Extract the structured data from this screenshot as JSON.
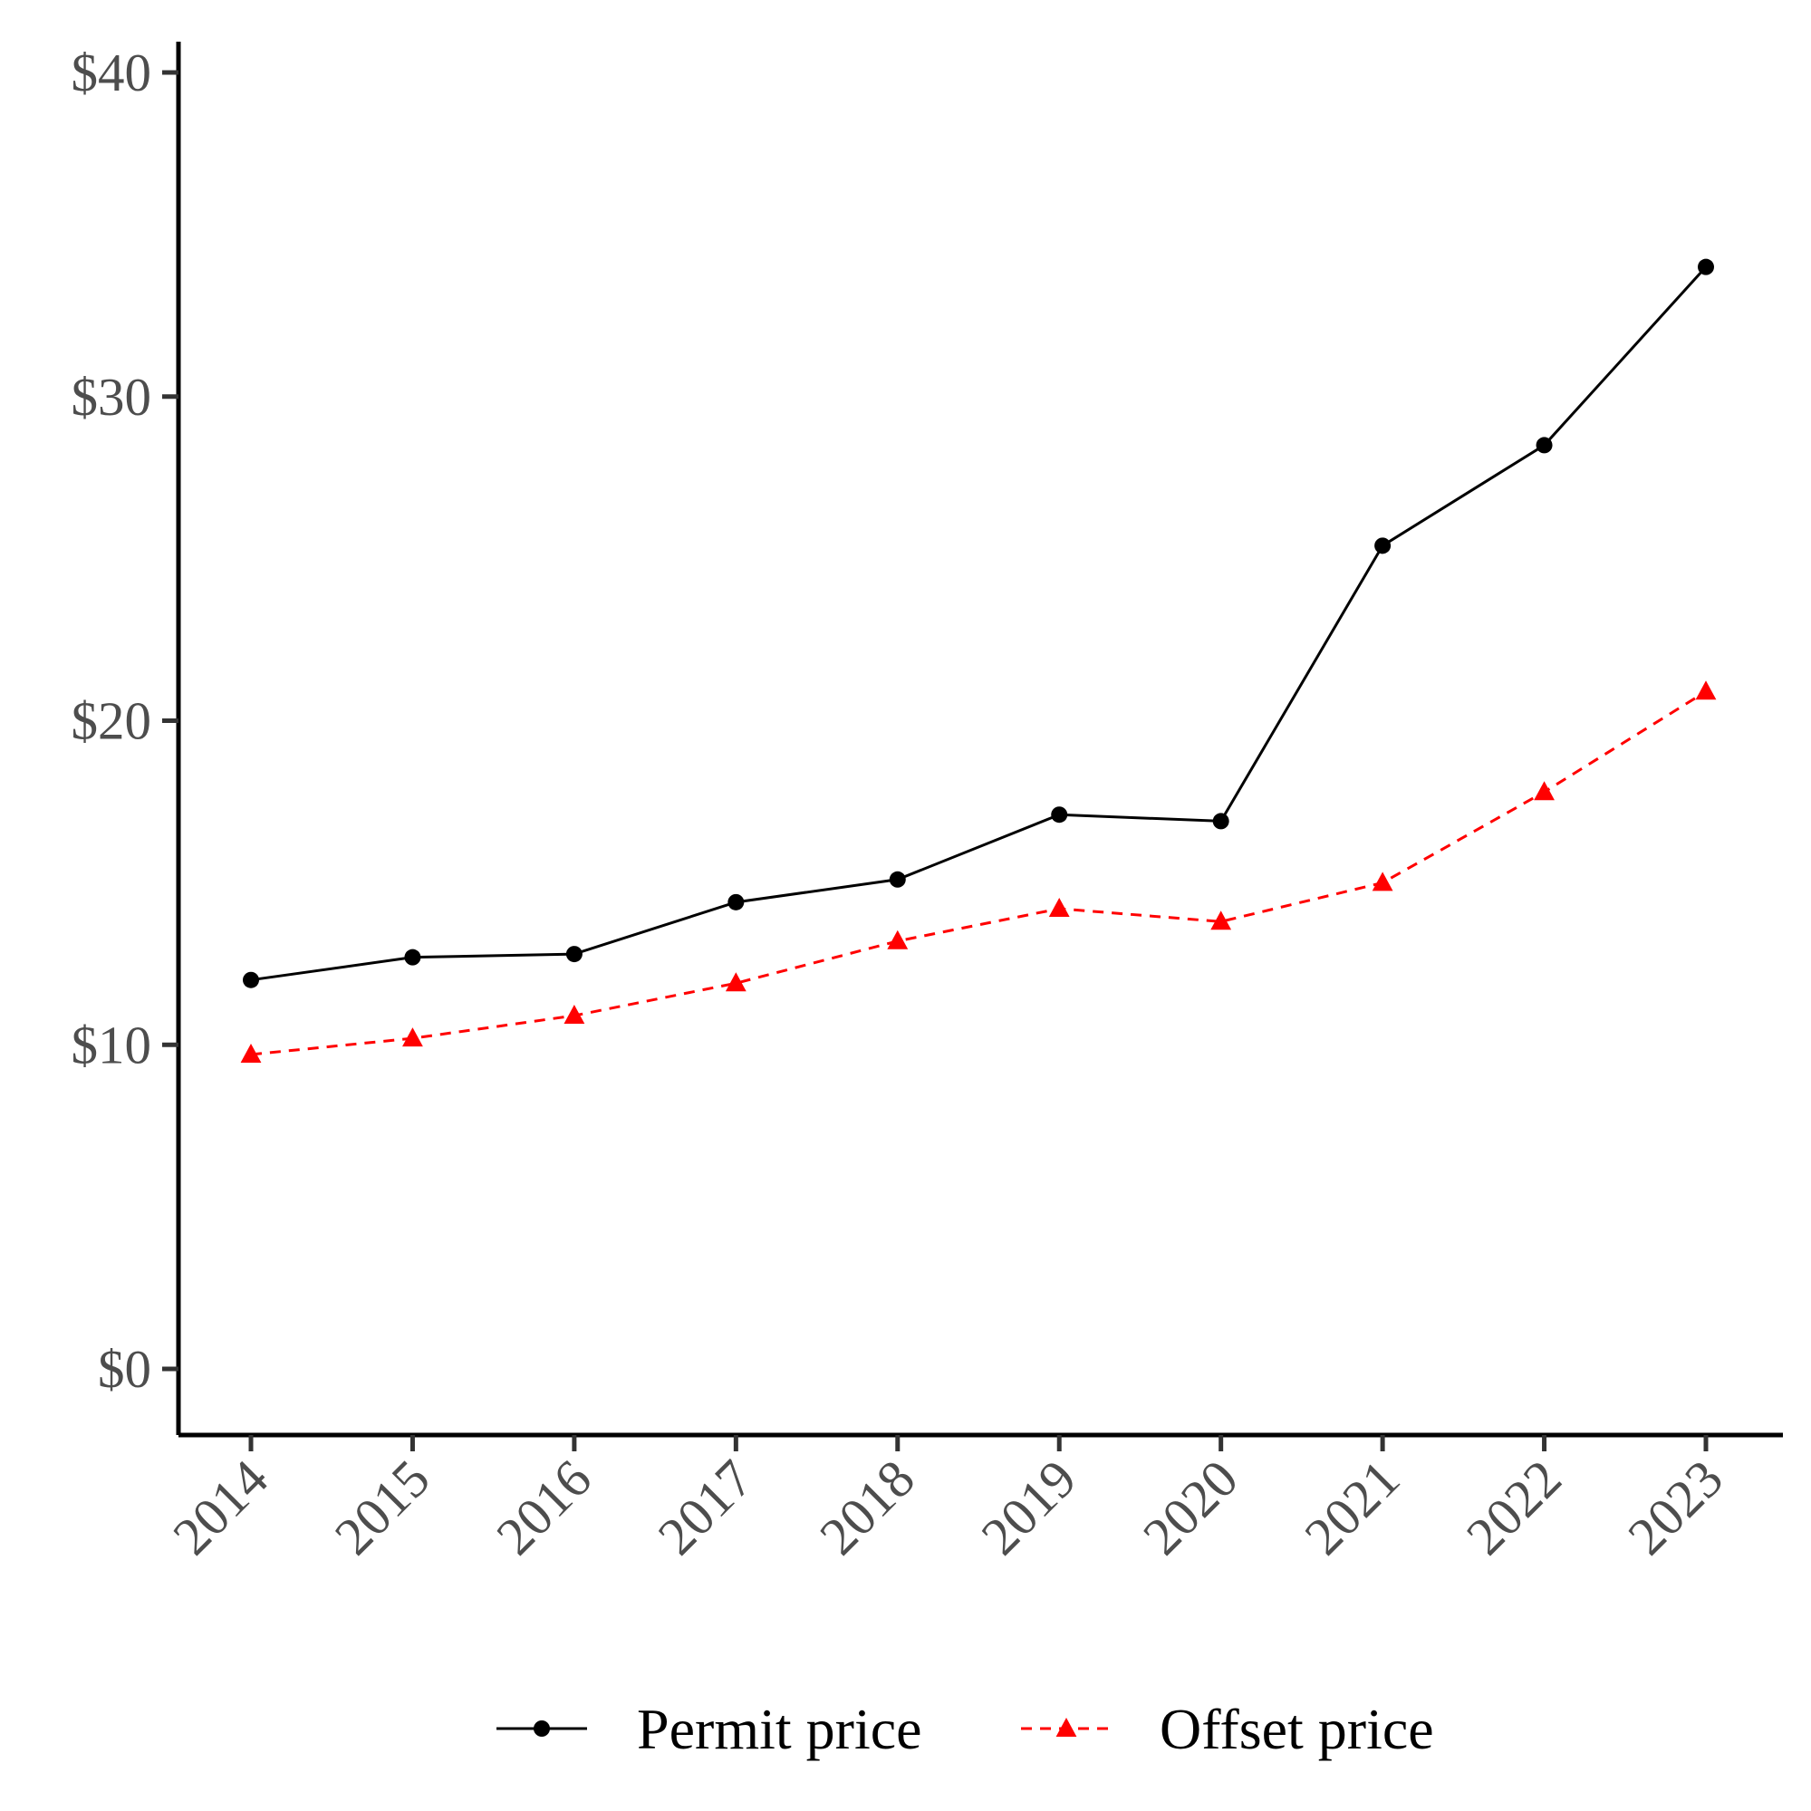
{
  "chart_data": {
    "type": "line",
    "title": "",
    "xlabel": "",
    "ylabel": "",
    "x": [
      "2014",
      "2015",
      "2016",
      "2017",
      "2018",
      "2019",
      "2020",
      "2021",
      "2022",
      "2023"
    ],
    "ylim": [
      -2,
      41
    ],
    "yticks": [
      0,
      10,
      20,
      30,
      40
    ],
    "ytick_labels": [
      "$0",
      "$10",
      "$20",
      "$30",
      "$40"
    ],
    "grid": false,
    "legend_position": "bottom",
    "series": [
      {
        "name": "Permit price",
        "values": [
          12.0,
          12.7,
          12.8,
          14.4,
          15.1,
          17.1,
          16.9,
          25.4,
          28.5,
          34.0
        ],
        "color": "#000000",
        "line_style": "solid",
        "marker": "circle"
      },
      {
        "name": "Offset price",
        "values": [
          9.7,
          10.2,
          10.9,
          11.9,
          13.2,
          14.2,
          13.8,
          15.0,
          17.8,
          20.9
        ],
        "color": "#ff0000",
        "line_style": "dashed",
        "marker": "triangle"
      }
    ]
  }
}
